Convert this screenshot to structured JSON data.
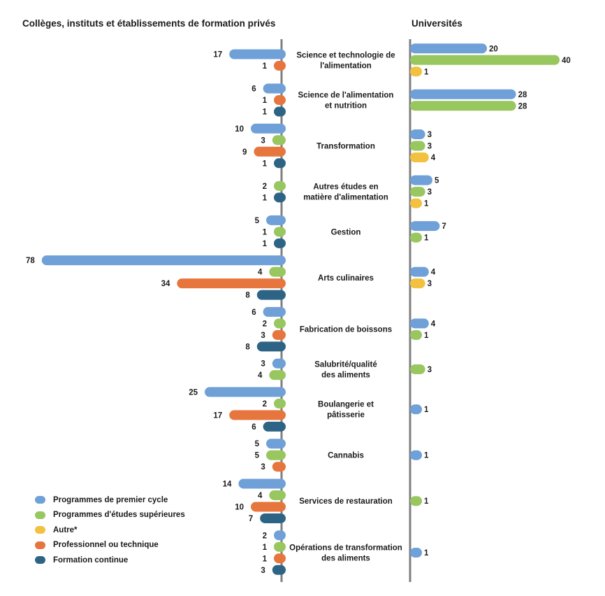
{
  "headers": {
    "left": "Collèges, instituts et établissements de formation privés",
    "right": "Universités"
  },
  "colors": {
    "premier_cycle": "#6fa0d8",
    "etudes_superieures": "#98c65f",
    "autre": "#f2c13f",
    "professionnel": "#e6763d",
    "formation_continue": "#2d6485",
    "axis": "#7f7f7f"
  },
  "legend": [
    {
      "key": "premier_cycle",
      "label": "Programmes de premier cycle"
    },
    {
      "key": "etudes_superieures",
      "label": "Programmes d'études supérieures"
    },
    {
      "key": "autre",
      "label": "Autre*"
    },
    {
      "key": "professionnel",
      "label": "Professionnel ou technique"
    },
    {
      "key": "formation_continue",
      "label": "Formation continue"
    }
  ],
  "chart_data": {
    "type": "bar",
    "orientation": "horizontal-butterfly",
    "series": [
      {
        "key": "premier_cycle",
        "name": "Programmes de premier cycle"
      },
      {
        "key": "etudes_superieures",
        "name": "Programmes d'études supérieures"
      },
      {
        "key": "autre",
        "name": "Autre*"
      },
      {
        "key": "professionnel",
        "name": "Professionnel ou technique"
      },
      {
        "key": "formation_continue",
        "name": "Formation continue"
      }
    ],
    "categories": [
      {
        "label": [
          "Science et technologie de",
          "l'alimentation"
        ],
        "colleges": {
          "premier_cycle": 17,
          "professionnel": 1
        },
        "universites": {
          "premier_cycle": 20,
          "etudes_superieures": 40,
          "autre": 1
        }
      },
      {
        "label": [
          "Science de l'alimentation",
          "et nutrition"
        ],
        "colleges": {
          "premier_cycle": 6,
          "professionnel": 1,
          "formation_continue": 1
        },
        "universites": {
          "premier_cycle": 28,
          "etudes_superieures": 28
        }
      },
      {
        "label": [
          "Transformation"
        ],
        "colleges": {
          "premier_cycle": 10,
          "etudes_superieures": 3,
          "professionnel": 9,
          "formation_continue": 1
        },
        "universites": {
          "premier_cycle": 3,
          "etudes_superieures": 3,
          "autre": 4
        }
      },
      {
        "label": [
          "Autres études en",
          "matière d'alimentation"
        ],
        "colleges": {
          "etudes_superieures": 2,
          "formation_continue": 1
        },
        "universites": {
          "premier_cycle": 5,
          "etudes_superieures": 3,
          "autre": 1
        }
      },
      {
        "label": [
          "Gestion"
        ],
        "colleges": {
          "premier_cycle": 5,
          "etudes_superieures": 1,
          "formation_continue": 1
        },
        "universites": {
          "premier_cycle": 7,
          "etudes_superieures": 1
        }
      },
      {
        "label": [
          "Arts culinaires"
        ],
        "colleges": {
          "premier_cycle": 78,
          "etudes_superieures": 4,
          "professionnel": 34,
          "formation_continue": 8
        },
        "universites": {
          "premier_cycle": 4,
          "autre": 3
        }
      },
      {
        "label": [
          "Fabrication de boissons"
        ],
        "colleges": {
          "premier_cycle": 6,
          "etudes_superieures": 2,
          "professionnel": 3,
          "formation_continue": 8
        },
        "universites": {
          "premier_cycle": 4,
          "etudes_superieures": 1
        }
      },
      {
        "label": [
          "Salubrité/qualité",
          "des aliments"
        ],
        "colleges": {
          "premier_cycle": 3,
          "etudes_superieures": 4
        },
        "universites": {
          "etudes_superieures": 3
        }
      },
      {
        "label": [
          "Boulangerie et",
          "pâtisserie"
        ],
        "colleges": {
          "premier_cycle": 25,
          "etudes_superieures": 2,
          "professionnel": 17,
          "formation_continue": 6
        },
        "universites": {
          "premier_cycle": 1
        }
      },
      {
        "label": [
          "Cannabis"
        ],
        "colleges": {
          "premier_cycle": 5,
          "etudes_superieures": 5,
          "professionnel": 3
        },
        "universites": {
          "premier_cycle": 1
        }
      },
      {
        "label": [
          "Services de restauration"
        ],
        "colleges": {
          "premier_cycle": 14,
          "etudes_superieures": 4,
          "professionnel": 10,
          "formation_continue": 7
        },
        "universites": {
          "etudes_superieures": 1
        }
      },
      {
        "label": [
          "Opérations de transformation",
          "des aliments"
        ],
        "colleges": {
          "premier_cycle": 2,
          "etudes_superieures": 1,
          "professionnel": 1,
          "formation_continue": 3
        },
        "universites": {
          "premier_cycle": 1
        }
      }
    ]
  }
}
